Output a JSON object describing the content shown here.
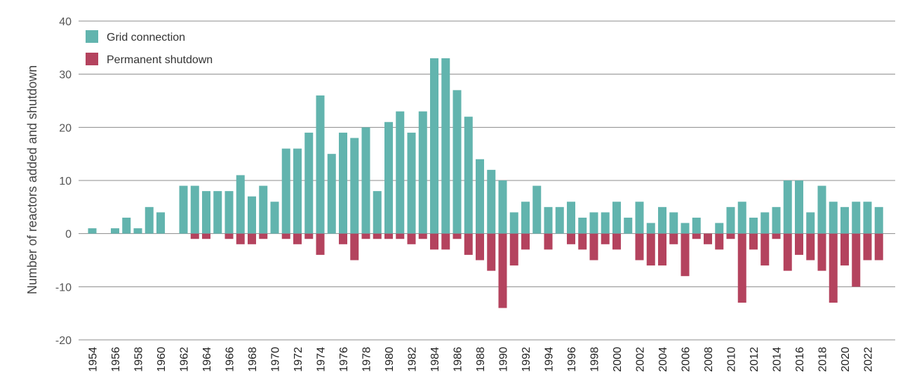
{
  "chart_data": {
    "type": "bar",
    "title": "",
    "xlabel": "",
    "ylabel": "Number of reactors added and shutdown",
    "ylim": [
      -20,
      40
    ],
    "yticks": [
      -20,
      -10,
      0,
      10,
      20,
      30,
      40
    ],
    "categories": [
      "1954",
      "1955",
      "1956",
      "1957",
      "1958",
      "1959",
      "1960",
      "1961",
      "1962",
      "1963",
      "1964",
      "1965",
      "1966",
      "1967",
      "1968",
      "1969",
      "1970",
      "1971",
      "1972",
      "1973",
      "1974",
      "1975",
      "1976",
      "1977",
      "1978",
      "1979",
      "1980",
      "1981",
      "1982",
      "1983",
      "1984",
      "1985",
      "1986",
      "1987",
      "1988",
      "1989",
      "1990",
      "1991",
      "1992",
      "1993",
      "1994",
      "1995",
      "1996",
      "1997",
      "1998",
      "1999",
      "2000",
      "2001",
      "2002",
      "2003",
      "2004",
      "2005",
      "2006",
      "2007",
      "2008",
      "2009",
      "2010",
      "2011",
      "2012",
      "2013",
      "2014",
      "2015",
      "2016",
      "2017",
      "2018",
      "2019",
      "2020",
      "2021",
      "2022",
      "2023"
    ],
    "x_tick_labels": [
      "1954",
      "1956",
      "1958",
      "1960",
      "1962",
      "1964",
      "1966",
      "1968",
      "1970",
      "1972",
      "1974",
      "1976",
      "1978",
      "1980",
      "1982",
      "1984",
      "1986",
      "1988",
      "1990",
      "1992",
      "1994",
      "1996",
      "1998",
      "2000",
      "2002",
      "2004",
      "2006",
      "2008",
      "2010",
      "2012",
      "2014",
      "2016",
      "2018",
      "2020",
      "2022"
    ],
    "legend_position": "top-left",
    "series": [
      {
        "name": "Grid connection",
        "color": "#62b4ae",
        "values": [
          1,
          0,
          1,
          3,
          1,
          5,
          4,
          0,
          9,
          9,
          8,
          8,
          8,
          11,
          7,
          9,
          6,
          16,
          16,
          19,
          26,
          15,
          19,
          18,
          20,
          8,
          21,
          23,
          19,
          23,
          33,
          33,
          27,
          22,
          14,
          12,
          10,
          4,
          6,
          9,
          5,
          5,
          6,
          3,
          4,
          4,
          6,
          3,
          6,
          2,
          5,
          4,
          2,
          3,
          0,
          2,
          5,
          6,
          3,
          4,
          5,
          10,
          10,
          4,
          9,
          6,
          5,
          6,
          6,
          5
        ]
      },
      {
        "name": "Permanent shutdown",
        "color": "#b4435e",
        "values": [
          0,
          0,
          0,
          0,
          0,
          0,
          0,
          0,
          0,
          -1,
          -1,
          0,
          -1,
          -2,
          -2,
          -1,
          0,
          -1,
          -2,
          -1,
          -4,
          0,
          -2,
          -5,
          -1,
          -1,
          -1,
          -1,
          -2,
          -1,
          -3,
          -3,
          -1,
          -4,
          -5,
          -7,
          -14,
          -6,
          -3,
          0,
          -3,
          0,
          -2,
          -3,
          -5,
          -2,
          -3,
          0,
          -5,
          -6,
          -6,
          -2,
          -8,
          -1,
          -2,
          -3,
          -1,
          -13,
          -3,
          -6,
          -1,
          -7,
          -4,
          -5,
          -7,
          -13,
          -6,
          -10,
          -5,
          -5
        ]
      }
    ]
  }
}
